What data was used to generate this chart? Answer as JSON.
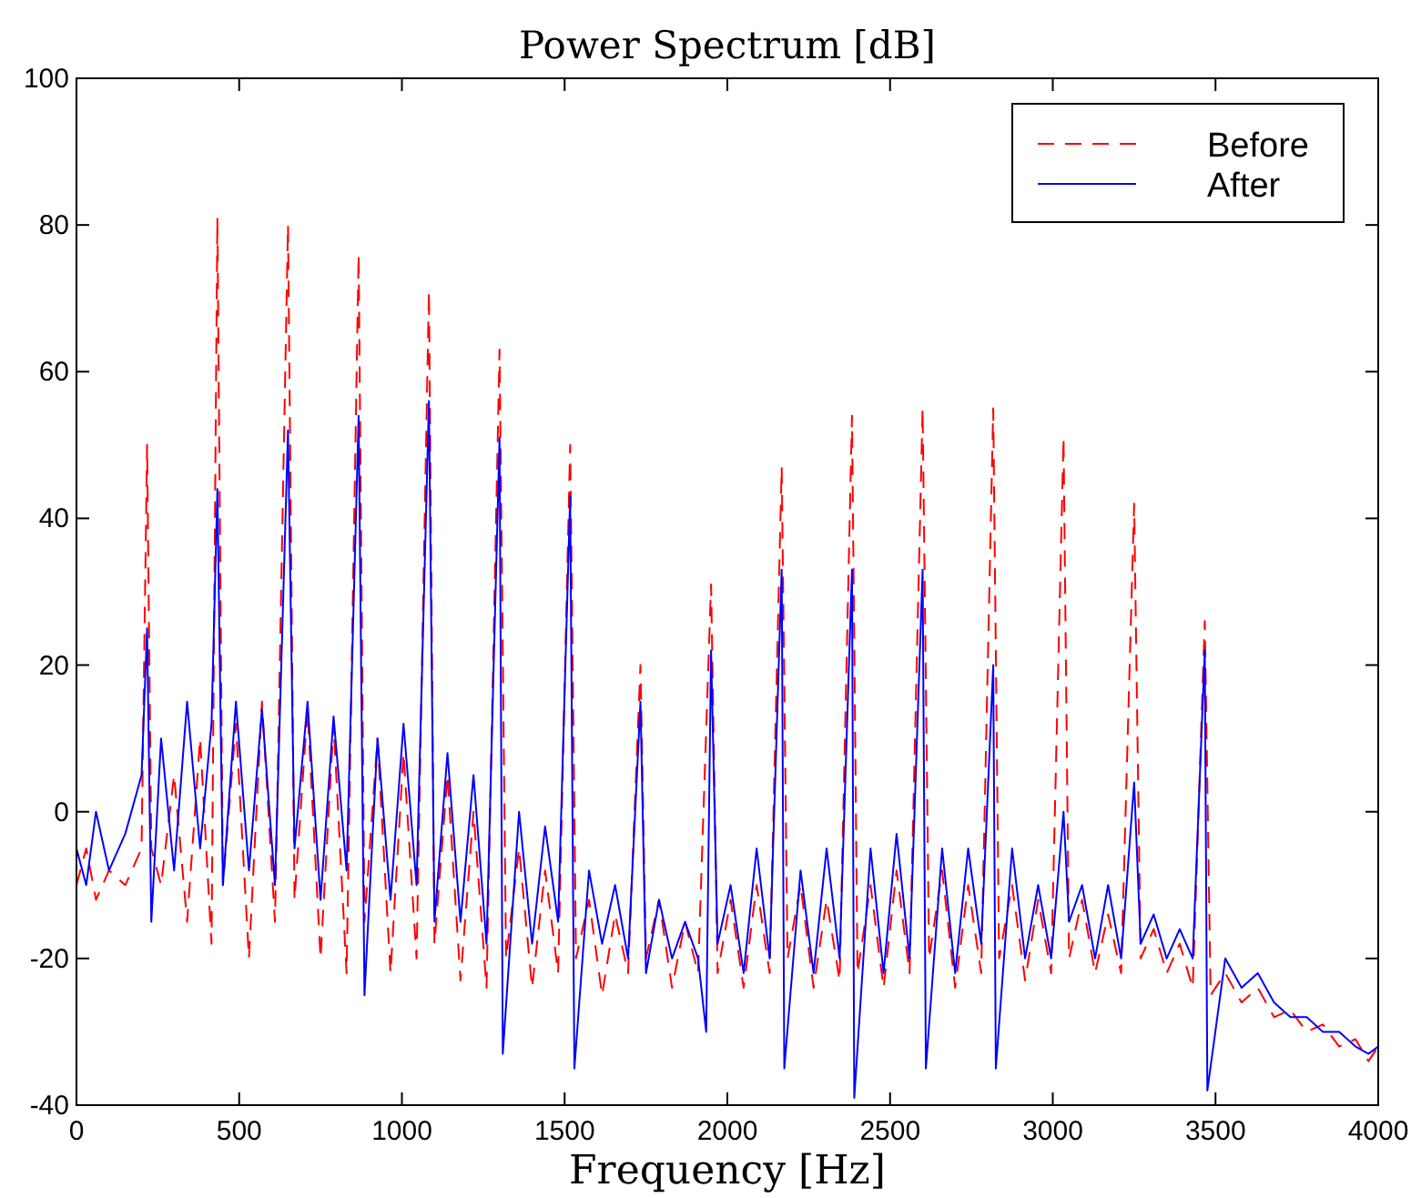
{
  "chart_data": {
    "type": "line",
    "title": "Power Spectrum [dB]",
    "xlabel": "Frequency [Hz]",
    "xlim": [
      0,
      4000
    ],
    "xticks": [
      0,
      500,
      1000,
      1500,
      2000,
      2500,
      3000,
      3500,
      4000
    ],
    "ylim": [
      -40,
      100
    ],
    "yticks": [
      -40,
      -20,
      0,
      20,
      40,
      60,
      80,
      100
    ],
    "grid": false,
    "legend": "top right",
    "series": [
      {
        "name": "Before",
        "color": "#ff0000",
        "line_style": "dashed",
        "x": [
          0,
          30,
          60,
          100,
          150,
          200,
          217,
          230,
          260,
          300,
          340,
          380,
          415,
          433,
          450,
          490,
          530,
          570,
          610,
          650,
          670,
          710,
          750,
          790,
          830,
          867,
          885,
          925,
          965,
          1005,
          1045,
          1083,
          1100,
          1140,
          1180,
          1220,
          1260,
          1300,
          1320,
          1360,
          1400,
          1440,
          1480,
          1517,
          1535,
          1575,
          1615,
          1655,
          1695,
          1733,
          1750,
          1790,
          1830,
          1870,
          1910,
          1950,
          1970,
          2010,
          2050,
          2090,
          2130,
          2167,
          2185,
          2225,
          2265,
          2305,
          2345,
          2383,
          2400,
          2440,
          2480,
          2520,
          2560,
          2600,
          2620,
          2660,
          2700,
          2740,
          2780,
          2817,
          2835,
          2875,
          2915,
          2955,
          2995,
          3033,
          3050,
          3090,
          3130,
          3170,
          3210,
          3250,
          3270,
          3310,
          3350,
          3390,
          3430,
          3467,
          3485,
          3530,
          3580,
          3630,
          3680,
          3730,
          3780,
          3830,
          3880,
          3930,
          3970,
          4000
        ],
        "values": [
          -10,
          -5,
          -12,
          -8,
          -10,
          -5,
          50,
          -5,
          -10,
          5,
          -15,
          10,
          -18,
          81,
          -10,
          12,
          -20,
          15,
          -15,
          80,
          -12,
          14,
          -20,
          12,
          -22,
          76,
          -15,
          10,
          -22,
          8,
          -20,
          71,
          -18,
          5,
          -23,
          0,
          -24,
          63,
          -20,
          -5,
          -24,
          -8,
          -22,
          50,
          -20,
          -12,
          -25,
          -14,
          -22,
          20,
          -20,
          -12,
          -24,
          -15,
          -22,
          31,
          -22,
          -12,
          -24,
          -10,
          -22,
          47,
          -20,
          -10,
          -24,
          -12,
          -23,
          54,
          -22,
          -10,
          -24,
          -8,
          -22,
          55,
          -20,
          -8,
          -24,
          -10,
          -22,
          55,
          -20,
          -10,
          -23,
          -12,
          -22,
          51,
          -20,
          -12,
          -22,
          -14,
          -22,
          42,
          -20,
          -16,
          -22,
          -18,
          -24,
          26,
          -25,
          -22,
          -26,
          -24,
          -28,
          -27,
          -30,
          -29,
          -32,
          -31,
          -34,
          -32
        ]
      },
      {
        "name": "After",
        "color": "#0000ff",
        "line_style": "solid",
        "x": [
          0,
          30,
          60,
          100,
          150,
          200,
          217,
          230,
          260,
          300,
          340,
          380,
          415,
          433,
          450,
          490,
          530,
          570,
          610,
          650,
          670,
          710,
          750,
          790,
          830,
          867,
          885,
          925,
          965,
          1005,
          1045,
          1083,
          1100,
          1140,
          1180,
          1220,
          1260,
          1300,
          1310,
          1360,
          1400,
          1440,
          1480,
          1517,
          1530,
          1575,
          1615,
          1655,
          1695,
          1733,
          1750,
          1790,
          1830,
          1870,
          1910,
          1935,
          1950,
          1970,
          2010,
          2050,
          2090,
          2130,
          2167,
          2175,
          2225,
          2265,
          2305,
          2345,
          2383,
          2390,
          2440,
          2480,
          2520,
          2560,
          2600,
          2610,
          2660,
          2700,
          2740,
          2780,
          2817,
          2825,
          2875,
          2915,
          2955,
          2995,
          3033,
          3050,
          3090,
          3130,
          3170,
          3210,
          3250,
          3270,
          3310,
          3350,
          3390,
          3430,
          3467,
          3475,
          3530,
          3580,
          3630,
          3680,
          3730,
          3780,
          3830,
          3880,
          3930,
          3970,
          4000
        ],
        "values": [
          -5,
          -10,
          0,
          -8,
          -3,
          5,
          25,
          -15,
          10,
          -8,
          15,
          -5,
          12,
          44,
          -10,
          15,
          -8,
          14,
          -10,
          52,
          -5,
          15,
          -12,
          13,
          -8,
          54,
          -25,
          10,
          -12,
          12,
          -10,
          56,
          -15,
          8,
          -15,
          5,
          -18,
          51,
          -33,
          0,
          -18,
          -2,
          -15,
          43,
          -35,
          -8,
          -18,
          -10,
          -20,
          15,
          -22,
          -12,
          -20,
          -15,
          -20,
          -30,
          22,
          -18,
          -10,
          -22,
          -5,
          -20,
          33,
          -35,
          -8,
          -22,
          -5,
          -20,
          33,
          -39,
          -5,
          -22,
          -3,
          -20,
          33,
          -35,
          -5,
          -22,
          -5,
          -18,
          20,
          -35,
          -5,
          -20,
          -10,
          -20,
          0,
          -15,
          -10,
          -20,
          -10,
          -20,
          4,
          -18,
          -14,
          -20,
          -16,
          -20,
          22,
          -38,
          -20,
          -24,
          -22,
          -26,
          -28,
          -28,
          -30,
          -30,
          -32,
          -33,
          -32
        ]
      }
    ]
  }
}
